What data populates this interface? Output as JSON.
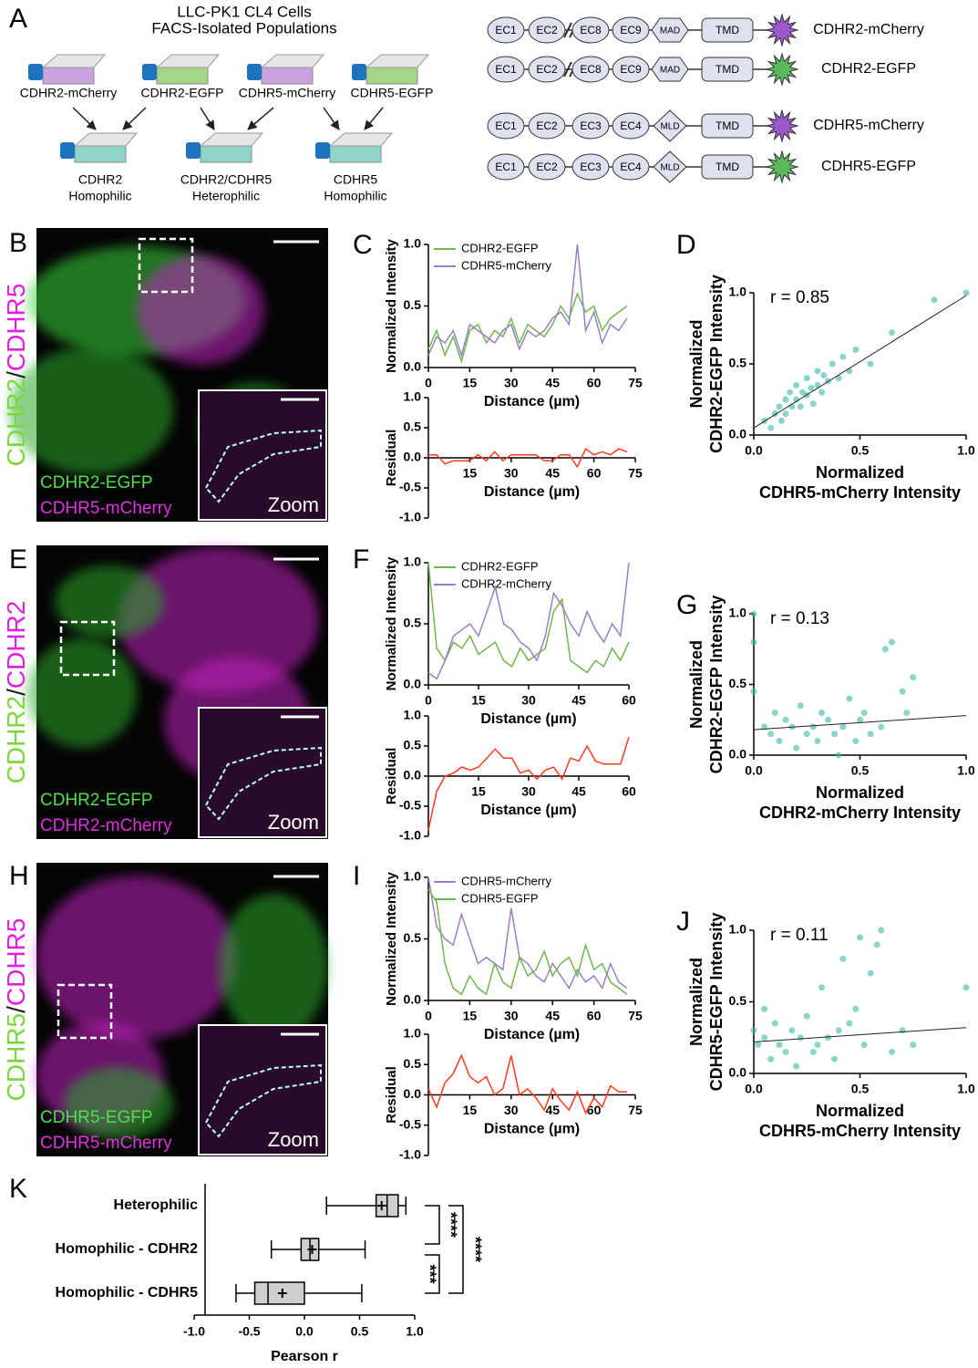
{
  "panel_labels": [
    "A",
    "B",
    "C",
    "D",
    "E",
    "F",
    "G",
    "H",
    "I",
    "J",
    "K"
  ],
  "panel_a": {
    "title": [
      "LLC-PK1 CL4 Cells",
      "FACS-Isolated Populations"
    ],
    "sources": [
      "CDHR2-mCherry",
      "CDHR2-EGFP",
      "CDHR5-mCherry",
      "CDHR5-EGFP"
    ],
    "mixes": [
      [
        "CDHR2",
        "Homophilic"
      ],
      [
        "CDHR2/CDHR5",
        "Heterophilic"
      ],
      [
        "CDHR5",
        "Homophilic"
      ]
    ],
    "constructs": [
      {
        "domains": [
          "EC1",
          "EC2",
          "EC8",
          "EC9",
          "MAD",
          "TMD"
        ],
        "tag_color": "#9b59c9",
        "name": "CDHR2-mCherry"
      },
      {
        "domains": [
          "EC1",
          "EC2",
          "EC8",
          "EC9",
          "MAD",
          "TMD"
        ],
        "tag_color": "#5cb85c",
        "name": "CDHR2-EGFP"
      },
      {
        "domains": [
          "EC1",
          "EC2",
          "EC3",
          "EC4",
          "MLD",
          "TMD"
        ],
        "tag_color": "#9b59c9",
        "name": "CDHR5-mCherry"
      },
      {
        "domains": [
          "EC1",
          "EC2",
          "EC3",
          "EC4",
          "MLD",
          "TMD"
        ],
        "tag_color": "#5cb85c",
        "name": "CDHR5-EGFP"
      }
    ]
  },
  "images": [
    {
      "side_label": [
        "CDHR2",
        "/",
        "CDHR5"
      ],
      "channels": [
        "CDHR2-EGFP",
        "CDHR5-mCherry"
      ],
      "zoom": "Zoom"
    },
    {
      "side_label": [
        "CDHR2",
        "/",
        "CDHR2"
      ],
      "channels": [
        "CDHR2-EGFP",
        "CDHR2-mCherry"
      ],
      "zoom": "Zoom"
    },
    {
      "side_label": [
        "CDHR5",
        "/",
        "CDHR5"
      ],
      "channels": [
        "CDHR5-EGFP",
        "CDHR5-mCherry"
      ],
      "zoom": "Zoom"
    }
  ],
  "chart_data": [
    {
      "type": "line",
      "ylabel": "Normalized Intensity",
      "xlabel": "Distance (µm)",
      "xlim": [
        0,
        75
      ],
      "ylim": [
        0,
        1
      ],
      "xticks": [
        0,
        15,
        30,
        45,
        60,
        75
      ],
      "yticks": [
        {
          "value": 0,
          "label": "0.0"
        },
        {
          "value": 0.5,
          "label": "0.5"
        },
        {
          "value": 1,
          "label": "1.0"
        }
      ],
      "x": [
        0,
        3,
        6,
        9,
        12,
        15,
        18,
        21,
        24,
        27,
        30,
        33,
        36,
        39,
        42,
        45,
        48,
        51,
        54,
        57,
        60,
        63,
        66,
        69,
        72
      ],
      "series": [
        {
          "name": "CDHR2-EGFP",
          "color": "#6cb84a",
          "values": [
            0.15,
            0.3,
            0.1,
            0.25,
            0.05,
            0.3,
            0.35,
            0.2,
            0.3,
            0.25,
            0.4,
            0.2,
            0.35,
            0.3,
            0.25,
            0.35,
            0.5,
            0.4,
            0.6,
            0.45,
            0.5,
            0.3,
            0.4,
            0.45,
            0.5
          ]
        },
        {
          "name": "CDHR5-mCherry",
          "color": "#9a7fc6",
          "values": [
            0.1,
            0.25,
            0.2,
            0.3,
            0.1,
            0.35,
            0.3,
            0.25,
            0.2,
            0.3,
            0.35,
            0.15,
            0.3,
            0.25,
            0.3,
            0.4,
            0.45,
            0.35,
            1.0,
            0.3,
            0.45,
            0.2,
            0.35,
            0.3,
            0.4
          ]
        }
      ]
    },
    {
      "type": "line",
      "ylabel": "Residual",
      "xlabel": "Distance (µm)",
      "xlim": [
        0,
        75
      ],
      "ylim": [
        -1,
        1
      ],
      "xticks": [
        15,
        30,
        45,
        60,
        75
      ],
      "yticks": [
        {
          "value": -1,
          "label": "-1.0"
        },
        {
          "value": -0.5,
          "label": "-0.5"
        },
        {
          "value": 0,
          "label": "0.0"
        },
        {
          "value": 0.5,
          "label": "0.5"
        },
        {
          "value": 1,
          "label": "1.0"
        }
      ],
      "x": [
        0,
        3,
        6,
        9,
        12,
        15,
        18,
        21,
        24,
        27,
        30,
        33,
        36,
        39,
        42,
        45,
        48,
        51,
        54,
        57,
        60,
        63,
        66,
        69,
        72
      ],
      "series": [
        {
          "color": "#ff3b1f",
          "values": [
            0.05,
            0.05,
            -0.1,
            -0.05,
            -0.05,
            -0.05,
            0.05,
            -0.05,
            0.1,
            -0.05,
            0.05,
            0.05,
            0.05,
            0.05,
            -0.05,
            -0.05,
            0.05,
            0.05,
            -0.15,
            0.15,
            0.05,
            0.1,
            0.05,
            0.15,
            0.1
          ]
        }
      ]
    },
    {
      "type": "scatter",
      "annotation": "r = 0.85",
      "xlabel": [
        "Normalized",
        "CDHR5-mCherry Intensity"
      ],
      "ylabel": [
        "Normalized",
        "CDHR2-EGFP Intensity"
      ],
      "xlim": [
        0,
        1
      ],
      "ylim": [
        0,
        1
      ],
      "xticks": [
        {
          "value": 0,
          "label": "0.0"
        },
        {
          "value": 0.5,
          "label": "0.5"
        },
        {
          "value": 1,
          "label": "1.0"
        }
      ],
      "yticks": [
        {
          "value": 0,
          "label": "0.0"
        },
        {
          "value": 0.5,
          "label": "0.5"
        },
        {
          "value": 1,
          "label": "1.0"
        }
      ],
      "color": "#3db8ae",
      "x": [
        0.05,
        0.08,
        0.1,
        0.12,
        0.13,
        0.15,
        0.15,
        0.17,
        0.18,
        0.2,
        0.2,
        0.22,
        0.23,
        0.25,
        0.25,
        0.27,
        0.28,
        0.3,
        0.3,
        0.32,
        0.33,
        0.35,
        0.37,
        0.4,
        0.42,
        0.45,
        0.48,
        0.55,
        0.65,
        0.85,
        1.0
      ],
      "y": [
        0.1,
        0.05,
        0.15,
        0.2,
        0.1,
        0.25,
        0.15,
        0.3,
        0.2,
        0.25,
        0.35,
        0.2,
        0.3,
        0.28,
        0.4,
        0.33,
        0.22,
        0.35,
        0.45,
        0.3,
        0.42,
        0.38,
        0.5,
        0.4,
        0.55,
        0.45,
        0.6,
        0.5,
        0.72,
        0.95,
        1.0
      ],
      "fit": {
        "x": [
          0,
          1
        ],
        "y": [
          0.05,
          0.98
        ]
      }
    },
    {
      "type": "line",
      "ylabel": "Normalized Intensity",
      "xlabel": "Distance (µm)",
      "xlim": [
        0,
        60
      ],
      "ylim": [
        0,
        1
      ],
      "xticks": [
        0,
        15,
        30,
        45,
        60
      ],
      "yticks": [
        {
          "value": 0,
          "label": "0.0"
        },
        {
          "value": 0.5,
          "label": "0.5"
        },
        {
          "value": 1,
          "label": "1.0"
        }
      ],
      "x": [
        0,
        2.5,
        5,
        7.5,
        10,
        12.5,
        15,
        17.5,
        20,
        22.5,
        25,
        27.5,
        30,
        32.5,
        35,
        37.5,
        40,
        42.5,
        45,
        47.5,
        50,
        52.5,
        55,
        57.5,
        60
      ],
      "series": [
        {
          "name": "CDHR2-EGFP",
          "color": "#6cb84a",
          "values": [
            1.0,
            0.3,
            0.2,
            0.35,
            0.3,
            0.4,
            0.25,
            0.3,
            0.35,
            0.2,
            0.15,
            0.3,
            0.2,
            0.25,
            0.3,
            0.6,
            0.7,
            0.2,
            0.15,
            0.1,
            0.2,
            0.15,
            0.3,
            0.2,
            0.35
          ]
        },
        {
          "name": "CDHR2-mCherry",
          "color": "#9a7fc6",
          "values": [
            0.1,
            0.05,
            0.2,
            0.4,
            0.45,
            0.5,
            0.4,
            0.6,
            0.8,
            0.5,
            0.45,
            0.35,
            0.3,
            0.2,
            0.4,
            0.75,
            0.65,
            0.5,
            0.4,
            0.6,
            0.45,
            0.35,
            0.5,
            0.4,
            1.0
          ]
        }
      ]
    },
    {
      "type": "line",
      "ylabel": "Residual",
      "xlabel": "Distance (µm)",
      "xlim": [
        0,
        60
      ],
      "ylim": [
        -1,
        1
      ],
      "xticks": [
        15,
        30,
        45,
        60
      ],
      "yticks": [
        {
          "value": -1,
          "label": "-1.0"
        },
        {
          "value": -0.5,
          "label": "-0.5"
        },
        {
          "value": 0,
          "label": "0.0"
        },
        {
          "value": 0.5,
          "label": "0.5"
        },
        {
          "value": 1,
          "label": "1.0"
        }
      ],
      "x": [
        0,
        2.5,
        5,
        7.5,
        10,
        12.5,
        15,
        17.5,
        20,
        22.5,
        25,
        27.5,
        30,
        32.5,
        35,
        37.5,
        40,
        42.5,
        45,
        47.5,
        50,
        52.5,
        55,
        57.5,
        60
      ],
      "series": [
        {
          "color": "#ff3b1f",
          "values": [
            -0.9,
            -0.25,
            0.0,
            0.05,
            0.15,
            0.1,
            0.15,
            0.3,
            0.45,
            0.3,
            0.3,
            0.05,
            0.1,
            -0.05,
            0.1,
            0.15,
            -0.05,
            0.3,
            0.25,
            0.5,
            0.25,
            0.2,
            0.2,
            0.2,
            0.65
          ]
        }
      ]
    },
    {
      "type": "scatter",
      "annotation": "r = 0.13",
      "xlabel": [
        "Normalized",
        "CDHR2-mCherry Intensity"
      ],
      "ylabel": [
        "Normalized",
        "CDHR2-EGFP Intensity"
      ],
      "xlim": [
        0,
        1
      ],
      "ylim": [
        0,
        1
      ],
      "xticks": [
        {
          "value": 0,
          "label": "0.0"
        },
        {
          "value": 0.5,
          "label": "0.5"
        },
        {
          "value": 1,
          "label": "1.0"
        }
      ],
      "yticks": [
        {
          "value": 0,
          "label": "0.0"
        },
        {
          "value": 0.5,
          "label": "0.5"
        },
        {
          "value": 1,
          "label": "1.0"
        }
      ],
      "color": "#3db8ae",
      "x": [
        0.0,
        0.0,
        0.05,
        0.08,
        0.1,
        0.12,
        0.15,
        0.18,
        0.2,
        0.22,
        0.25,
        0.28,
        0.3,
        0.32,
        0.35,
        0.38,
        0.4,
        0.42,
        0.45,
        0.48,
        0.5,
        0.52,
        0.55,
        0.6,
        0.62,
        0.65,
        0.7,
        0.72,
        0.75,
        0.0
      ],
      "y": [
        1.0,
        0.8,
        0.2,
        0.15,
        0.3,
        0.1,
        0.25,
        0.2,
        0.05,
        0.35,
        0.15,
        0.2,
        0.1,
        0.3,
        0.25,
        0.15,
        0.0,
        0.2,
        0.4,
        0.1,
        0.25,
        0.3,
        0.15,
        0.2,
        0.75,
        0.8,
        0.45,
        0.3,
        0.55,
        0.45
      ],
      "fit": {
        "x": [
          0,
          1
        ],
        "y": [
          0.18,
          0.28
        ]
      }
    },
    {
      "type": "line",
      "ylabel": "Normalized Intensity",
      "xlabel": "Distance (µm)",
      "xlim": [
        0,
        75
      ],
      "ylim": [
        0,
        1
      ],
      "xticks": [
        0,
        15,
        30,
        45,
        60,
        75
      ],
      "yticks": [
        {
          "value": 0,
          "label": "0.0"
        },
        {
          "value": 0.5,
          "label": "0.5"
        },
        {
          "value": 1,
          "label": "1.0"
        }
      ],
      "x": [
        0,
        3,
        6,
        9,
        12,
        15,
        18,
        21,
        24,
        27,
        30,
        33,
        36,
        39,
        42,
        45,
        48,
        51,
        54,
        57,
        60,
        63,
        66,
        69,
        72
      ],
      "series": [
        {
          "name": "CDHR5-mCherry",
          "color": "#9a7fc6",
          "values": [
            1.0,
            0.6,
            0.5,
            0.45,
            0.7,
            0.5,
            0.3,
            0.35,
            0.3,
            0.25,
            0.75,
            0.35,
            0.3,
            0.2,
            0.15,
            0.3,
            0.2,
            0.1,
            0.25,
            0.15,
            0.2,
            0.1,
            0.3,
            0.15,
            0.1
          ]
        },
        {
          "name": "CDHR5-EGFP",
          "color": "#6cb84a",
          "values": [
            0.9,
            0.8,
            0.3,
            0.1,
            0.05,
            0.2,
            0.1,
            0.05,
            0.3,
            0.15,
            0.1,
            0.35,
            0.2,
            0.25,
            0.4,
            0.2,
            0.3,
            0.35,
            0.2,
            0.45,
            0.25,
            0.3,
            0.15,
            0.1,
            0.05
          ]
        }
      ]
    },
    {
      "type": "line",
      "ylabel": "Residual",
      "xlabel": "Distance (µm)",
      "xlim": [
        0,
        75
      ],
      "ylim": [
        -1,
        1
      ],
      "xticks": [
        15,
        30,
        45,
        60,
        75
      ],
      "yticks": [
        {
          "value": -1,
          "label": "-1.0"
        },
        {
          "value": -0.5,
          "label": "-0.5"
        },
        {
          "value": 0,
          "label": "0.0"
        },
        {
          "value": 0.5,
          "label": "0.5"
        },
        {
          "value": 1,
          "label": "1.0"
        }
      ],
      "x": [
        0,
        3,
        6,
        9,
        12,
        15,
        18,
        21,
        24,
        27,
        30,
        33,
        36,
        39,
        42,
        45,
        48,
        51,
        54,
        57,
        60,
        63,
        66,
        69,
        72
      ],
      "series": [
        {
          "color": "#ff3b1f",
          "values": [
            0.1,
            -0.2,
            0.2,
            0.35,
            0.65,
            0.3,
            0.2,
            0.3,
            0.0,
            0.1,
            0.65,
            0.0,
            0.1,
            -0.05,
            -0.25,
            0.1,
            -0.1,
            -0.25,
            0.05,
            -0.3,
            -0.05,
            -0.2,
            0.15,
            0.05,
            0.05
          ]
        }
      ]
    },
    {
      "type": "scatter",
      "annotation": "r = 0.11",
      "xlabel": [
        "Normalized",
        "CDHR5-mCherry Intensity"
      ],
      "ylabel": [
        "Normalized",
        "CDHR5-EGFP Intensity"
      ],
      "xlim": [
        0,
        1
      ],
      "ylim": [
        0,
        1
      ],
      "xticks": [
        {
          "value": 0,
          "label": "0.0"
        },
        {
          "value": 0.5,
          "label": "0.5"
        },
        {
          "value": 1,
          "label": "1.0"
        }
      ],
      "yticks": [
        {
          "value": 0,
          "label": "0.0"
        },
        {
          "value": 0.5,
          "label": "0.5"
        },
        {
          "value": 1,
          "label": "1.0"
        }
      ],
      "color": "#3db8ae",
      "x": [
        0.0,
        0.02,
        0.05,
        0.08,
        0.1,
        0.12,
        0.15,
        0.18,
        0.2,
        0.22,
        0.25,
        0.28,
        0.3,
        0.32,
        0.35,
        0.38,
        0.4,
        0.42,
        0.45,
        0.48,
        0.5,
        0.52,
        0.55,
        0.58,
        0.6,
        0.65,
        0.7,
        0.75,
        1.0,
        0.05
      ],
      "y": [
        0.3,
        0.2,
        0.25,
        0.1,
        0.35,
        0.2,
        0.15,
        0.3,
        0.05,
        0.25,
        0.4,
        0.15,
        0.2,
        0.6,
        0.25,
        0.1,
        0.3,
        0.8,
        0.35,
        0.45,
        0.95,
        0.2,
        0.7,
        0.9,
        1.0,
        0.15,
        0.3,
        0.2,
        0.6,
        0.45
      ],
      "fit": {
        "x": [
          0,
          1
        ],
        "y": [
          0.22,
          0.32
        ]
      }
    },
    {
      "type": "box",
      "categories": [
        "Heterophilic",
        "Homophilic - CDHR2",
        "Homophilic - CDHR5"
      ],
      "stats": [
        {
          "min": 0.2,
          "q1": 0.65,
          "median": 0.75,
          "q3": 0.85,
          "max": 0.92,
          "mean": 0.7
        },
        {
          "min": -0.3,
          "q1": -0.03,
          "median": 0.05,
          "q3": 0.13,
          "max": 0.55,
          "mean": 0.07
        },
        {
          "min": -0.62,
          "q1": -0.45,
          "median": -0.33,
          "q3": 0.0,
          "max": 0.52,
          "mean": -0.2
        }
      ],
      "xlabel": "Pearson r",
      "xlim": [
        -1,
        1
      ],
      "xticks": [
        {
          "value": -1,
          "label": "-1.0"
        },
        {
          "value": -0.5,
          "label": "-0.5"
        },
        {
          "value": 0,
          "label": "0.0"
        },
        {
          "value": 0.5,
          "label": "0.5"
        },
        {
          "value": 1,
          "label": "1.0"
        }
      ],
      "significance": [
        {
          "pair": [
            0,
            1
          ],
          "label": "****"
        },
        {
          "pair": [
            1,
            2
          ],
          "label": "***"
        },
        {
          "pair": [
            0,
            2
          ],
          "label": "****"
        }
      ]
    }
  ]
}
